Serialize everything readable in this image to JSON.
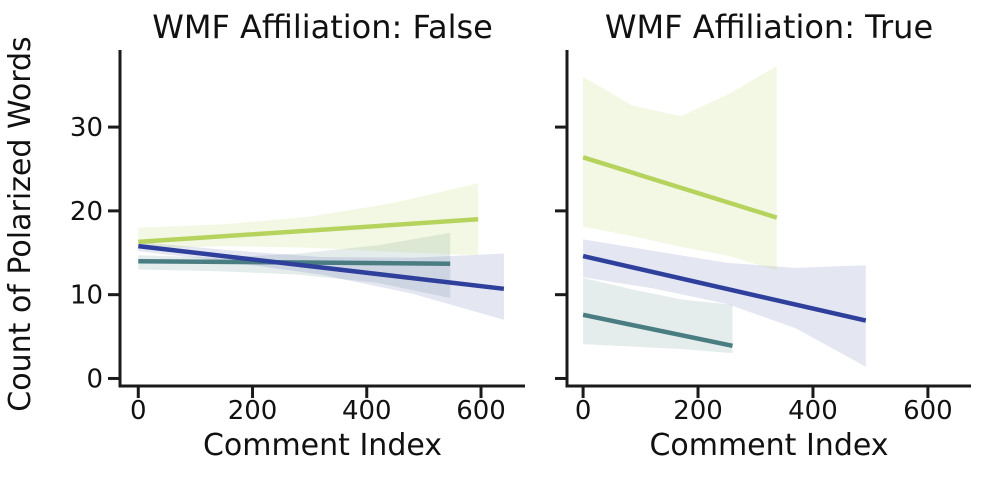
{
  "figure": {
    "ylabel": "Count of Polarized Words",
    "text_color": "#111111",
    "axis_color": "#1a1a1a",
    "background": "#ffffff"
  },
  "chart_data": [
    {
      "type": "line",
      "title": "WMF Affiliation: False",
      "xlabel": "Comment Index",
      "ylabel": "Count of Polarized Words",
      "xlim": [
        -32,
        677
      ],
      "ylim": [
        -0.9,
        39.2
      ],
      "xticks": [
        0,
        200,
        400,
        600
      ],
      "yticks": [
        0,
        10,
        20,
        30
      ],
      "show_ytick_labels": true,
      "grid": false,
      "legend": "none",
      "series": [
        {
          "name": "teal",
          "color": "#4a7d82",
          "band_color": "rgba(74,125,130,0.15)",
          "line": {
            "x": [
              0,
              546
            ],
            "y": [
              14.0,
              13.7
            ]
          },
          "band": {
            "x": [
              0,
              140,
              280,
              420,
              546
            ],
            "top": [
              14.7,
              14.4,
              14.9,
              15.9,
              17.4
            ],
            "bottom": [
              13.0,
              12.8,
              12.4,
              11.4,
              9.6
            ]
          }
        },
        {
          "name": "dark-blue",
          "color": "#2e3f9c",
          "band_color": "rgba(46,63,156,0.13)",
          "line": {
            "x": [
              0,
              640
            ],
            "y": [
              15.8,
              10.7
            ]
          },
          "band": {
            "x": [
              0,
              160,
              320,
              480,
              640
            ],
            "top": [
              16.3,
              15.3,
              14.5,
              14.4,
              14.9
            ],
            "bottom": [
              15.2,
              13.9,
              12.4,
              10.1,
              7.0
            ]
          }
        },
        {
          "name": "yellow-green",
          "color": "#b6d35d",
          "band_color": "rgba(182,211,93,0.17)",
          "line": {
            "x": [
              0,
              595
            ],
            "y": [
              16.3,
              19.0
            ]
          },
          "band": {
            "x": [
              0,
              150,
              300,
              450,
              595
            ],
            "top": [
              18.0,
              18.4,
              19.3,
              21.0,
              23.3
            ],
            "bottom": [
              15.5,
              15.8,
              15.6,
              15.1,
              14.7
            ]
          }
        }
      ]
    },
    {
      "type": "line",
      "title": "WMF Affiliation: True",
      "xlabel": "Comment Index",
      "ylabel": "Count of Polarized Words",
      "xlim": [
        -28,
        675
      ],
      "ylim": [
        -0.9,
        39.2
      ],
      "xticks": [
        0,
        200,
        400,
        600
      ],
      "yticks": [
        0,
        10,
        20,
        30
      ],
      "show_ytick_labels": false,
      "grid": false,
      "legend": "none",
      "series": [
        {
          "name": "teal",
          "color": "#4a7d82",
          "band_color": "rgba(74,125,130,0.15)",
          "line": {
            "x": [
              0,
              260
            ],
            "y": [
              7.6,
              3.9
            ]
          },
          "band": {
            "x": [
              0,
              87,
              174,
              260
            ],
            "top": [
              12.0,
              10.6,
              9.4,
              8.8
            ],
            "bottom": [
              4.1,
              3.8,
              3.5,
              3.0
            ]
          }
        },
        {
          "name": "dark-blue",
          "color": "#2e3f9c",
          "band_color": "rgba(46,63,156,0.13)",
          "line": {
            "x": [
              0,
              492
            ],
            "y": [
              14.6,
              6.9
            ]
          },
          "band": {
            "x": [
              0,
              125,
              250,
              370,
              492
            ],
            "top": [
              16.6,
              15.2,
              13.8,
              13.2,
              13.5
            ],
            "bottom": [
              12.1,
              10.7,
              8.9,
              6.0,
              1.4
            ]
          }
        },
        {
          "name": "yellow-green",
          "color": "#b6d35d",
          "band_color": "rgba(182,211,93,0.17)",
          "line": {
            "x": [
              0,
              337
            ],
            "y": [
              26.4,
              19.2
            ]
          },
          "band": {
            "x": [
              0,
              85,
              170,
              255,
              337
            ],
            "top": [
              36.0,
              32.6,
              31.3,
              34.0,
              37.3
            ],
            "bottom": [
              18.1,
              17.0,
              15.7,
              14.6,
              12.9
            ]
          }
        }
      ]
    }
  ]
}
